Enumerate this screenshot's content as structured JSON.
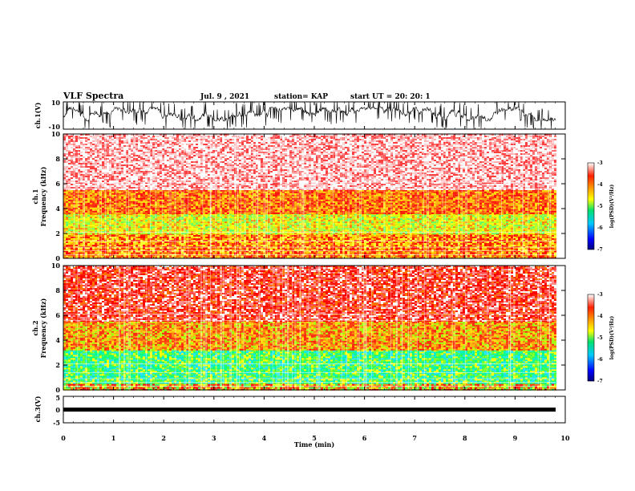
{
  "header": {
    "title": "VLF Spectra",
    "date": "Jul. 9 , 2021",
    "station": "station= KAP",
    "start_ut": "start UT = 20: 20: 1"
  },
  "chart_data": [
    {
      "type": "line",
      "name": "ch1-waveform",
      "ylabel": "ch.1(V)",
      "ylim": [
        -10,
        10
      ],
      "yticks": [
        "10",
        "-10"
      ],
      "xlim": [
        0,
        10
      ],
      "description_values": {
        "typical_min": -4,
        "typical_max": 6
      }
    },
    {
      "type": "heatmap",
      "name": "ch1-spectrogram",
      "ylabel": "ch.1\nFrequency (kHz)",
      "ylabel_line1": "ch.1",
      "ylabel_line2": "Frequency (kHz)",
      "ylim": [
        0,
        10
      ],
      "yticks": [
        "0",
        "2",
        "4",
        "6",
        "8",
        "10"
      ],
      "xlim": [
        0,
        10
      ],
      "bands_khz": [
        {
          "from": 0,
          "to": 1,
          "level": "high"
        },
        {
          "from": 1,
          "to": 2,
          "level": "red-yellow"
        },
        {
          "from": 2,
          "to": 3.6,
          "level": "yellow-green"
        },
        {
          "from": 3.6,
          "to": 5.5,
          "level": "orange-red"
        },
        {
          "from": 5.5,
          "to": 10,
          "level": "light-red"
        }
      ],
      "colorbar": {
        "label": "log(PSD)(V²/Hz)",
        "ticks": [
          "-3",
          "-4",
          "-5",
          "-6",
          "-7"
        ],
        "range": [
          -7,
          -3
        ]
      }
    },
    {
      "type": "heatmap",
      "name": "ch2-spectrogram",
      "ylabel_line1": "ch.2",
      "ylabel_line2": "Frequency (kHz)",
      "ylim": [
        0,
        10
      ],
      "yticks": [
        "0",
        "2",
        "4",
        "6",
        "8",
        "10"
      ],
      "xlim": [
        0,
        10
      ],
      "bands_khz": [
        {
          "from": 0,
          "to": 0.6,
          "level": "mixed"
        },
        {
          "from": 0.6,
          "to": 3.2,
          "level": "green-cyan"
        },
        {
          "from": 3.2,
          "to": 5.5,
          "level": "orange-yellow"
        },
        {
          "from": 5.5,
          "to": 10,
          "level": "red"
        }
      ],
      "colorbar": {
        "label": "log(PSD)(V²/Hz)",
        "ticks": [
          "-3",
          "-4",
          "-5",
          "-6",
          "-7"
        ],
        "range": [
          -7,
          -3
        ]
      }
    },
    {
      "type": "line",
      "name": "ch3-waveform",
      "ylabel": "ch.3(V)",
      "ylim": [
        -5,
        5
      ],
      "yticks": [
        "5",
        "0",
        "-5"
      ],
      "xlim": [
        0,
        10
      ],
      "description_values": {
        "level": 0
      }
    }
  ],
  "xaxis": {
    "label": "Time (min)",
    "ticks": [
      "0",
      "1",
      "2",
      "3",
      "4",
      "5",
      "6",
      "7",
      "8",
      "9",
      "10"
    ]
  },
  "colors": {
    "low": "#00007f",
    "mid_low": "#00c8ff",
    "mid": "#00e070",
    "mid_high": "#ffff00",
    "high": "#ff3000",
    "top": "#ffffff"
  }
}
